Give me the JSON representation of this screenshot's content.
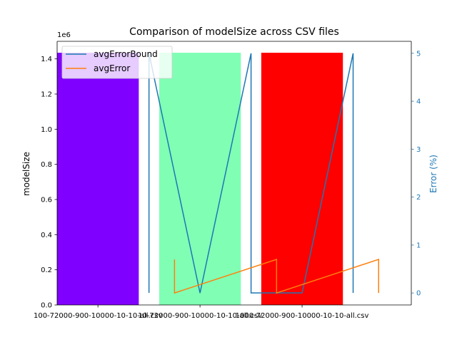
{
  "chart_data": {
    "type": "bar",
    "title": "Comparison of modelSize across CSV files",
    "categories": [
      "100-72000-900-10000-10-10-all.csv",
      "10-72000-900-10000-10-10-all.csv",
      "1000-72000-900-10000-10-10-all.csv"
    ],
    "bar_colors": [
      "#8000ff",
      "#80ffb4",
      "#ff0000"
    ],
    "left_axis": {
      "label": "modelSize",
      "multiplier_label": "1e6",
      "multiplier": 1000000,
      "ylim": [
        0,
        1.5
      ],
      "ticks": [
        0.0,
        0.2,
        0.4,
        0.6,
        0.8,
        1.0,
        1.2,
        1.4
      ],
      "tick_labels": [
        "0.0",
        "0.2",
        "0.4",
        "0.6",
        "0.8",
        "1.0",
        "1.2",
        "1.4"
      ],
      "values": [
        1.435,
        1.435,
        1.435
      ]
    },
    "right_axis": {
      "label": "Error (%)",
      "color": "#1f77b4",
      "ylim": [
        -0.25,
        5.25
      ],
      "ticks": [
        0,
        1,
        2,
        3,
        4,
        5
      ],
      "tick_labels": [
        "0",
        "1",
        "2",
        "3",
        "4",
        "5"
      ]
    },
    "series": [
      {
        "name": "avgErrorBound",
        "color": "#1f77b4",
        "points": [
          [
            0.5,
            0.0
          ],
          [
            0.5,
            5.0
          ],
          [
            1.0,
            0.0
          ],
          [
            1.5,
            5.0
          ],
          [
            1.5,
            0.0
          ],
          [
            2.0,
            0.0
          ],
          [
            2.5,
            5.0
          ],
          [
            2.5,
            0.0
          ]
        ]
      },
      {
        "name": "avgError",
        "color": "#ff7f0e",
        "points": [
          [
            0.75,
            0.7
          ],
          [
            0.75,
            0.0
          ],
          [
            1.75,
            0.7
          ],
          [
            1.75,
            0.0
          ],
          [
            2.75,
            0.7
          ],
          [
            2.75,
            0.0
          ]
        ]
      }
    ],
    "legend": {
      "placement": "top-left",
      "items": [
        "avgErrorBound",
        "avgError"
      ]
    },
    "grid": false
  }
}
